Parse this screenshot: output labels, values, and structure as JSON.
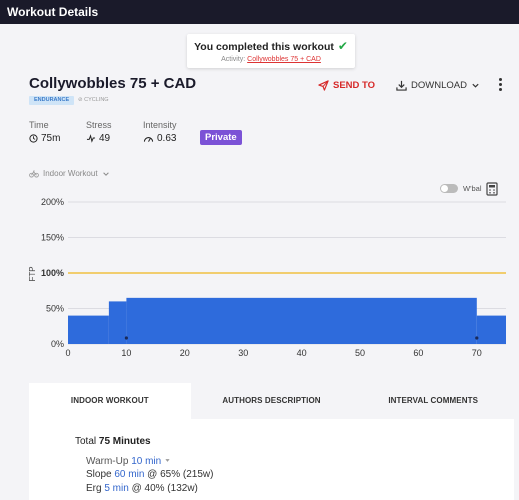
{
  "header": {
    "title": "Workout Details"
  },
  "toast": {
    "title": "You completed this workout",
    "activity_label": "Activity:",
    "activity_link": "Collywobbles 75 + CAD"
  },
  "workout": {
    "title": "Collywobbles 75 + CAD",
    "category_badge": "ENDURANCE",
    "sport_badge": "CYCLING",
    "privacy": "Private"
  },
  "actions": {
    "send_to": "SEND TO",
    "download": "DOWNLOAD"
  },
  "stats": [
    {
      "label": "Time",
      "value": "75m",
      "icon": "clock-icon"
    },
    {
      "label": "Stress",
      "value": "49",
      "icon": "pulse-icon"
    },
    {
      "label": "Intensity",
      "value": "0.63",
      "icon": "gauge-icon"
    }
  ],
  "workout_type_select": "Indoor Workout",
  "wbal_label": "W'bal",
  "colors": {
    "bars": "#2e6bdc",
    "ftp_line": "#f0c040",
    "private": "#7b52d6",
    "send_to": "#d62929"
  },
  "chart_data": {
    "type": "area",
    "ylabel": "FTP",
    "xlim": [
      0,
      75
    ],
    "ylim": [
      0,
      200
    ],
    "y_ticks": [
      "0%",
      "50%",
      "100%",
      "150%",
      "200%"
    ],
    "y_tick_values": [
      0,
      50,
      100,
      150,
      200
    ],
    "x_ticks": [
      "0",
      "10",
      "20",
      "30",
      "40",
      "50",
      "60",
      "70"
    ],
    "x_tick_values": [
      0,
      10,
      20,
      30,
      40,
      50,
      60,
      70
    ],
    "reference_line": 100,
    "segments": [
      {
        "start": 0,
        "end": 7,
        "power": 40
      },
      {
        "start": 7,
        "end": 10,
        "power": 60
      },
      {
        "start": 10,
        "end": 70,
        "power": 65
      },
      {
        "start": 70,
        "end": 75,
        "power": 40
      }
    ],
    "markers": [
      10,
      70
    ]
  },
  "tabs": [
    {
      "label": "INDOOR WORKOUT",
      "active": true
    },
    {
      "label": "AUTHORS DESCRIPTION",
      "active": false
    },
    {
      "label": "INTERVAL COMMENTS",
      "active": false
    }
  ],
  "details": {
    "total_label": "Total",
    "total_value": "75 Minutes",
    "steps": [
      {
        "name": "Warm-Up",
        "duration": "10 min"
      },
      {
        "name": "Slope",
        "duration": "60 min",
        "target": "@ 65% (215w)"
      },
      {
        "name": "Erg",
        "duration": "5 min",
        "target": "@ 40% (132w)"
      }
    ]
  }
}
